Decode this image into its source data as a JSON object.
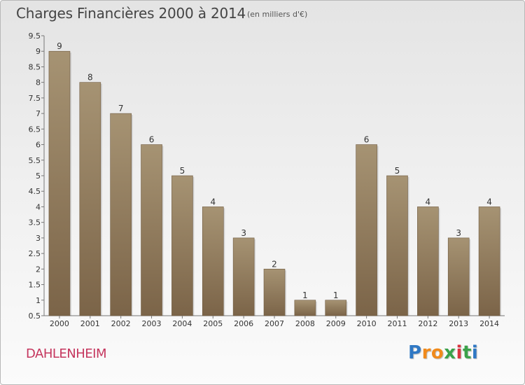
{
  "header": {
    "title": "Charges Financières 2000 à 2014",
    "subtitle": "(en milliers d'€)"
  },
  "footer": {
    "commune": "DAHLENHEIM",
    "logo_text": "Proxiti",
    "logo_letter_colors": [
      "#2f78c4",
      "#f08a1c",
      "#f08a1c",
      "#3aa14a",
      "#d9333f",
      "#3aa14a",
      "#2f78c4"
    ]
  },
  "colors": {
    "bar_top": "#a69373",
    "bar_bottom": "#7b6448",
    "title": "#444444",
    "commune": "#c5365e"
  },
  "chart_data": {
    "type": "bar",
    "title": "Charges Financières 2000 à 2014",
    "subtitle": "(en milliers d'€)",
    "xlabel": "",
    "ylabel": "",
    "categories": [
      "2000",
      "2001",
      "2002",
      "2003",
      "2004",
      "2005",
      "2006",
      "2007",
      "2008",
      "2009",
      "2010",
      "2011",
      "2012",
      "2013",
      "2014"
    ],
    "values": [
      9,
      8,
      7,
      6,
      5,
      4,
      3,
      2,
      1,
      1,
      6,
      5,
      4,
      3,
      4
    ],
    "ylim": [
      0.5,
      9.5
    ],
    "yticks": [
      "0.5",
      "1",
      "1.5",
      "2",
      "2.5",
      "3",
      "3.5",
      "4",
      "4.5",
      "5",
      "5.5",
      "6",
      "6.5",
      "7",
      "7.5",
      "8",
      "8.5",
      "9",
      "9.5"
    ],
    "data_labels": true,
    "grid": false,
    "legend": "none"
  }
}
